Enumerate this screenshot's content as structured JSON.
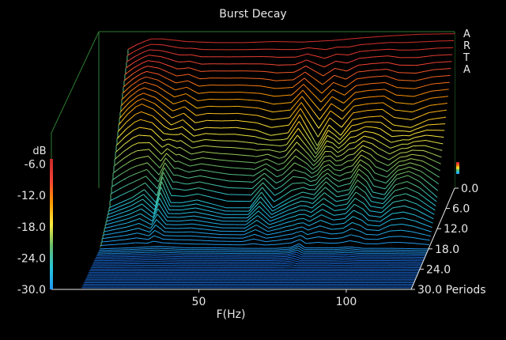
{
  "chart_data": {
    "type": "waterfall",
    "title": "Burst Decay",
    "xlabel": "F(Hz)",
    "x_ticks": [
      "50",
      "100"
    ],
    "x_tick_values": [
      50,
      100
    ],
    "x_range": [
      0,
      122
    ],
    "zlabel": "dB",
    "z_ticks": [
      "-6.0",
      "-12.0",
      "-18.0",
      "-24.0",
      "-30.0"
    ],
    "z_tick_values": [
      -6,
      -12,
      -18,
      -24,
      -30
    ],
    "z_range": [
      -30,
      0
    ],
    "depth_label": "Periods",
    "depth_ticks": [
      "0.0",
      "6.0",
      "12.0",
      "18.0",
      "24.0",
      "30.0 Periods"
    ],
    "depth_tick_values": [
      0,
      6,
      12,
      18,
      24,
      30
    ],
    "depth_range": [
      0,
      30
    ],
    "watermark_letters": [
      "A",
      "R",
      "T",
      "A"
    ],
    "colors": {
      "background": "#000000",
      "frame": "#2e7d32",
      "axis": "#e8e8e8",
      "floor": "#1c6fe0"
    },
    "colorbar_stops": [
      "#2196f3",
      "#26c6da",
      "#66bb6a",
      "#ffeb3b",
      "#ff9800",
      "#f44336",
      "#c62828"
    ],
    "series": [
      {
        "period": 0,
        "points": [
          [
            10,
            -3.4
          ],
          [
            13,
            -2.5
          ],
          [
            16,
            -1.8
          ],
          [
            18,
            -1.4
          ],
          [
            22,
            -1.4
          ],
          [
            30,
            -1.9
          ],
          [
            40,
            -2.1
          ],
          [
            50,
            -2.1
          ],
          [
            60,
            -1.9
          ],
          [
            70,
            -2.0
          ],
          [
            80,
            -1.7
          ],
          [
            90,
            -1.2
          ],
          [
            100,
            -0.8
          ],
          [
            110,
            -0.5
          ],
          [
            122,
            -0.4
          ]
        ]
      },
      {
        "period": 6,
        "points": [
          [
            10,
            -14
          ],
          [
            13,
            -12
          ],
          [
            16,
            -10.5
          ],
          [
            18,
            -10
          ],
          [
            22,
            -11
          ],
          [
            28,
            -14
          ],
          [
            32,
            -13
          ],
          [
            36,
            -15
          ],
          [
            40,
            -14.5
          ],
          [
            45,
            -14.6
          ],
          [
            50,
            -14.5
          ],
          [
            57,
            -15
          ],
          [
            62,
            -16
          ],
          [
            68,
            -15.5
          ],
          [
            72,
            -12
          ],
          [
            75,
            -15
          ],
          [
            78,
            -18
          ],
          [
            82,
            -14
          ],
          [
            86,
            -16
          ],
          [
            90,
            -13
          ],
          [
            95,
            -12.5
          ],
          [
            100,
            -12.3
          ],
          [
            104,
            -14
          ],
          [
            110,
            -14.5
          ],
          [
            116,
            -13
          ],
          [
            122,
            -12.5
          ]
        ]
      },
      {
        "period": 12,
        "points": [
          [
            10,
            -26
          ],
          [
            14,
            -25
          ],
          [
            18,
            -24
          ],
          [
            22,
            -22.5
          ],
          [
            26,
            -25
          ],
          [
            28,
            -21
          ],
          [
            31,
            -25
          ],
          [
            35,
            -25
          ],
          [
            40,
            -24.5
          ],
          [
            50,
            -26
          ],
          [
            58,
            -26
          ],
          [
            62,
            -23
          ],
          [
            66,
            -26
          ],
          [
            72,
            -24
          ],
          [
            76,
            -23
          ],
          [
            80,
            -23.5
          ],
          [
            84,
            -21
          ],
          [
            88,
            -23
          ],
          [
            92,
            -22.5
          ],
          [
            95,
            -19.5
          ],
          [
            98,
            -21
          ],
          [
            100,
            -23
          ],
          [
            104,
            -23.5
          ],
          [
            108,
            -20.5
          ],
          [
            112,
            -19.8
          ],
          [
            116,
            -21
          ],
          [
            122,
            -24
          ]
        ]
      },
      {
        "period": 18,
        "points": [
          [
            10,
            -30
          ],
          [
            20,
            -29.8
          ],
          [
            30,
            -29.5
          ],
          [
            40,
            -29.8
          ],
          [
            50,
            -29.8
          ],
          [
            60,
            -29.9
          ],
          [
            70,
            -29.9
          ],
          [
            75,
            -29.7
          ],
          [
            78,
            -29
          ],
          [
            80,
            -29.8
          ],
          [
            90,
            -29.8
          ],
          [
            95,
            -29.6
          ],
          [
            100,
            -29.9
          ],
          [
            110,
            -29.9
          ],
          [
            120,
            -30
          ],
          [
            122,
            -30
          ]
        ]
      },
      {
        "period": 24,
        "points": [
          [
            10,
            -30
          ],
          [
            30,
            -30
          ],
          [
            50,
            -30
          ],
          [
            70,
            -30
          ],
          [
            90,
            -30
          ],
          [
            110,
            -30
          ],
          [
            122,
            -30
          ]
        ]
      },
      {
        "period": 30,
        "points": [
          [
            10,
            -30
          ],
          [
            40,
            -30
          ],
          [
            80,
            -30
          ],
          [
            122,
            -30
          ]
        ]
      }
    ]
  }
}
